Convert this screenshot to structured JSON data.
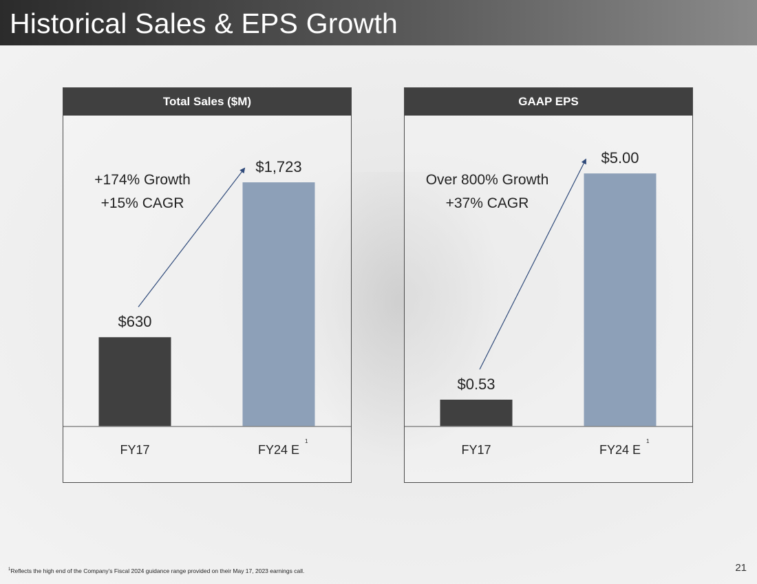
{
  "page": {
    "title": "Historical Sales & EPS Growth",
    "footnote_marker": "1",
    "footnote_text": "Reflects the high end of the Company’s Fiscal 2024 guidance range provided on their May 17, 2023 earnings call.",
    "page_number": "21"
  },
  "colors": {
    "fy17_bar": "#404040",
    "fy24_bar": "#8da0b8",
    "arrow": "#2f4a7a",
    "header_bg": "#404040"
  },
  "chart_data": [
    {
      "type": "bar",
      "title": "Total Sales ($M)",
      "categories": [
        "FY17",
        "FY24 E"
      ],
      "category_superscripts": [
        "",
        "1"
      ],
      "values": [
        630,
        1723
      ],
      "value_labels": [
        "$630",
        "$1,723"
      ],
      "growth_lines": [
        "+174% Growth",
        "+15% CAGR"
      ],
      "ylim": [
        0,
        2000
      ],
      "xlabel": "",
      "ylabel": "",
      "grid": false
    },
    {
      "type": "bar",
      "title": "GAAP EPS",
      "categories": [
        "FY17",
        "FY24 E"
      ],
      "category_superscripts": [
        "",
        "1"
      ],
      "values": [
        0.53,
        5.0
      ],
      "value_labels": [
        "$0.53",
        "$5.00"
      ],
      "growth_lines": [
        "Over 800% Growth",
        "+37% CAGR"
      ],
      "ylim": [
        0,
        5.6
      ],
      "xlabel": "",
      "ylabel": "",
      "grid": false
    }
  ]
}
